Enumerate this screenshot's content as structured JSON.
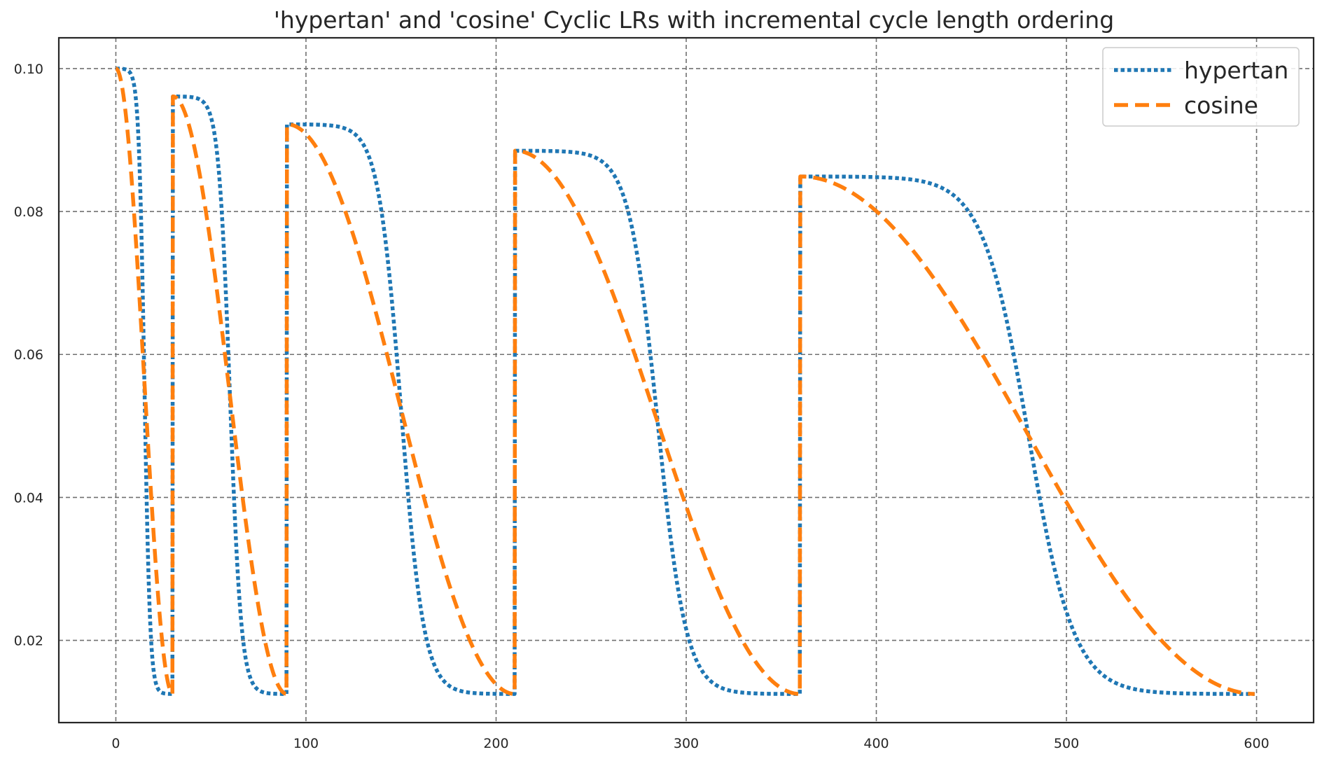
{
  "chart_data": {
    "type": "line",
    "title": "'hypertan' and 'cosine' Cyclic LRs with incremental cycle length ordering",
    "xlabel": "",
    "ylabel": "",
    "xlim": [
      -30,
      630
    ],
    "ylim": [
      0.0085,
      0.1043
    ],
    "x_ticks": [
      "0",
      "100",
      "200",
      "300",
      "400",
      "500",
      "600"
    ],
    "y_ticks": [
      "0.02",
      "0.04",
      "0.06",
      "0.08",
      "0.10"
    ],
    "grid": true,
    "legend_position": "upper right",
    "cycles": [
      {
        "start": 0,
        "end": 30,
        "max_lr": 0.1
      },
      {
        "start": 30,
        "end": 90,
        "max_lr": 0.0961
      },
      {
        "start": 90,
        "end": 210,
        "max_lr": 0.0922
      },
      {
        "start": 210,
        "end": 360,
        "max_lr": 0.0885
      },
      {
        "start": 360,
        "end": 600,
        "max_lr": 0.0849
      }
    ],
    "min_lr": 0.0125,
    "series": [
      {
        "name": "hypertan",
        "color": "#1f77b4",
        "style": "dotted"
      },
      {
        "name": "cosine",
        "color": "#ff7f0e",
        "style": "dashed"
      }
    ]
  }
}
